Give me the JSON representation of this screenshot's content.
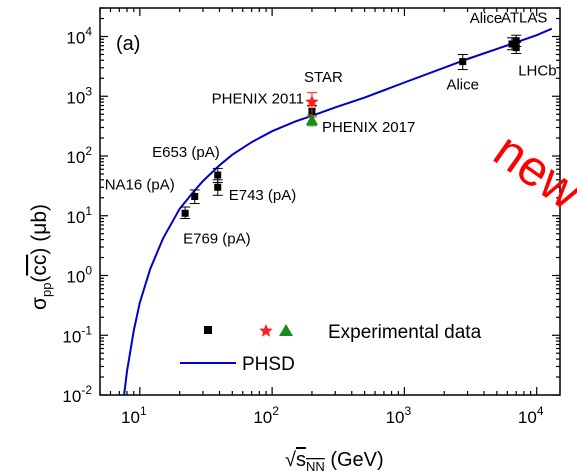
{
  "chart_data": {
    "type": "scatter",
    "panel_label": "(a)",
    "xscale": "log",
    "yscale": "log",
    "xlim": [
      5,
      15000
    ],
    "ylim": [
      0.01,
      30000
    ],
    "x_ticks": [
      {
        "mant": "10",
        "exp": "1"
      },
      {
        "mant": "10",
        "exp": "2"
      },
      {
        "mant": "10",
        "exp": "3"
      },
      {
        "mant": "10",
        "exp": "4"
      }
    ],
    "y_ticks": [
      {
        "mant": "10",
        "exp": "-2"
      },
      {
        "mant": "10",
        "exp": "-1"
      },
      {
        "mant": "10",
        "exp": "0"
      },
      {
        "mant": "10",
        "exp": "1"
      },
      {
        "mant": "10",
        "exp": "2"
      },
      {
        "mant": "10",
        "exp": "3"
      },
      {
        "mant": "10",
        "exp": "4"
      }
    ],
    "xlabel": {
      "root": "√",
      "s": "s",
      "sub": "NN",
      "unit": " (GeV)"
    },
    "ylabel": {
      "sigma": "σ",
      "sub": "pp",
      "open": "(",
      "cc": "cc",
      "close": ")",
      "unit": " (μb)"
    },
    "annotation": {
      "text": "new",
      "color": "#ff0000"
    },
    "colors": {
      "curve": "#0000cc",
      "square": "#000000",
      "star": "#ff2020",
      "triangle": "#1a8a1a",
      "axis": "#000000"
    },
    "series": [
      {
        "marker": "square",
        "color": "#000000",
        "points": [
          {
            "x": 22,
            "y": 11,
            "elo": 9,
            "ehi": 14,
            "label": "E769 (pA)"
          },
          {
            "x": 26,
            "y": 21,
            "elo": 16,
            "ehi": 27,
            "label": "NA16 (pA)"
          },
          {
            "x": 38.8,
            "y": 30,
            "elo": 22,
            "ehi": 40,
            "label": "E743 (pA)"
          },
          {
            "x": 38.8,
            "y": 48,
            "elo": 36,
            "ehi": 62,
            "label": "E653 (pA)"
          },
          {
            "x": 200,
            "y": 560,
            "elo": 450,
            "ehi": 700,
            "label": "PHENIX 2011"
          },
          {
            "x": 2760,
            "y": 3800,
            "elo": 2800,
            "ehi": 5000,
            "label": "Alice"
          },
          {
            "x": 6500,
            "y": 7500,
            "elo": 6000,
            "ehi": 9500,
            "label": "Alice"
          },
          {
            "x": 7000,
            "y": 8500,
            "elo": 6800,
            "ehi": 10500,
            "label": "ATLAS"
          },
          {
            "x": 7000,
            "y": 6500,
            "elo": 5200,
            "ehi": 8000,
            "label": "LHCb"
          }
        ]
      },
      {
        "marker": "star",
        "color": "#ff2020",
        "points": [
          {
            "x": 200,
            "y": 800,
            "elo": 450,
            "ehi": 1150,
            "label": "STAR"
          }
        ]
      },
      {
        "marker": "triangle",
        "color": "#1a8a1a",
        "points": [
          {
            "x": 200,
            "y": 400,
            "elo": 320,
            "ehi": 480,
            "label": "PHENIX 2017"
          }
        ]
      }
    ],
    "curve": {
      "name": "PHSD",
      "color": "#0000cc",
      "x": [
        7.6,
        8,
        9,
        10,
        12,
        15,
        20,
        25,
        30,
        40,
        50,
        70,
        100,
        150,
        200,
        300,
        500,
        1000,
        2000,
        3000,
        5000,
        7000,
        10000,
        13000
      ],
      "y": [
        0.01,
        0.025,
        0.12,
        0.35,
        1.3,
        4.2,
        13,
        24,
        38,
        70,
        105,
        170,
        260,
        380,
        470,
        650,
        950,
        1700,
        3000,
        4200,
        6200,
        8000,
        10500,
        13500
      ]
    },
    "legend": {
      "markers_label": "Experimental data",
      "line_label": "PHSD",
      "placement": "bottom-right"
    }
  }
}
